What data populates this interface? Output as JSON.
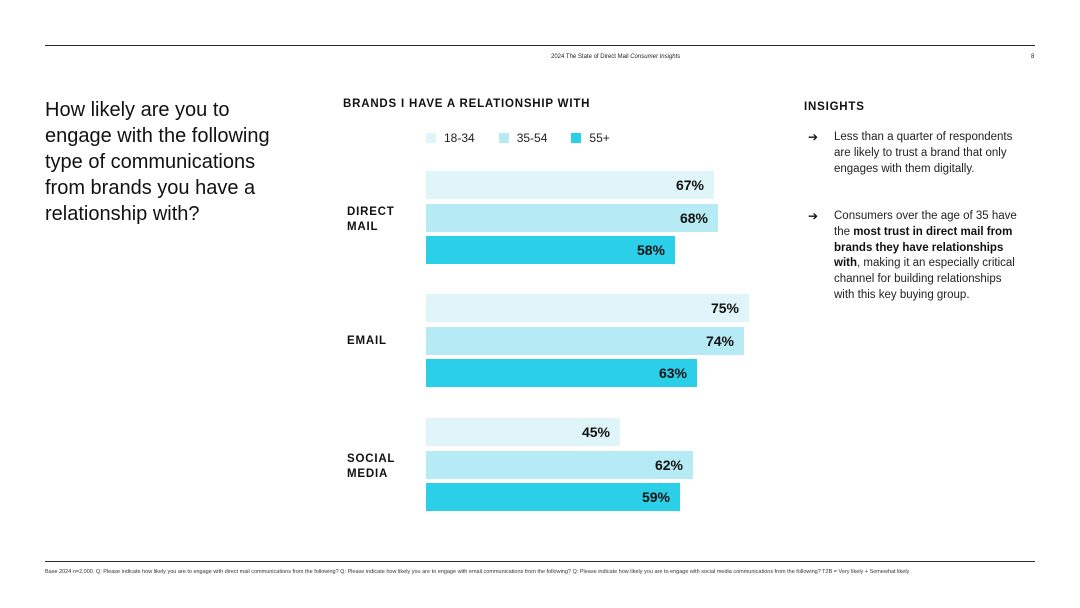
{
  "header": {
    "title_prefix": "2024 The State of Direct Mail ",
    "title_italic": "Consumer Insights",
    "page_number": "8"
  },
  "question": "How likely are you to engage with the following type of communications from brands you have a relationship with?",
  "insights": {
    "title": "INSIGHTS",
    "items": [
      {
        "text": "Less than a quarter of respondents are likely to trust a brand that only engages with them digitally."
      },
      {
        "pre": "Consumers over the age of 35 have the ",
        "bold": "most trust in direct mail from brands they have relationships with",
        "post": ", making it an especially critical channel for building relationships with this key buying group."
      }
    ]
  },
  "footnote": "Base 2024 n=2,000. Q: Please indicate how likely you are to engage with direct mail communications from the following? Q: Please indicate how likely you are to engage with email communications from the following? Q: Please indicate how likely you are to engage with social media communications from the following? T2B = Very likely + Somewhat likely",
  "colors": {
    "s1834": "#dff5fa",
    "s3554": "#b6eaf5",
    "s55": "#2ccfe8"
  },
  "chart_data": {
    "type": "bar",
    "orientation": "horizontal",
    "title": "BRANDS I HAVE A RELATIONSHIP WITH",
    "categories": [
      "DIRECT MAIL",
      "EMAIL",
      "SOCIAL MEDIA"
    ],
    "series": [
      {
        "name": "18-34",
        "values": [
          67,
          75,
          45
        ]
      },
      {
        "name": "35-54",
        "values": [
          68,
          74,
          62
        ]
      },
      {
        "name": "55+",
        "values": [
          58,
          63,
          59
        ]
      }
    ],
    "value_suffix": "%",
    "legend_position": "top",
    "grid": false
  }
}
